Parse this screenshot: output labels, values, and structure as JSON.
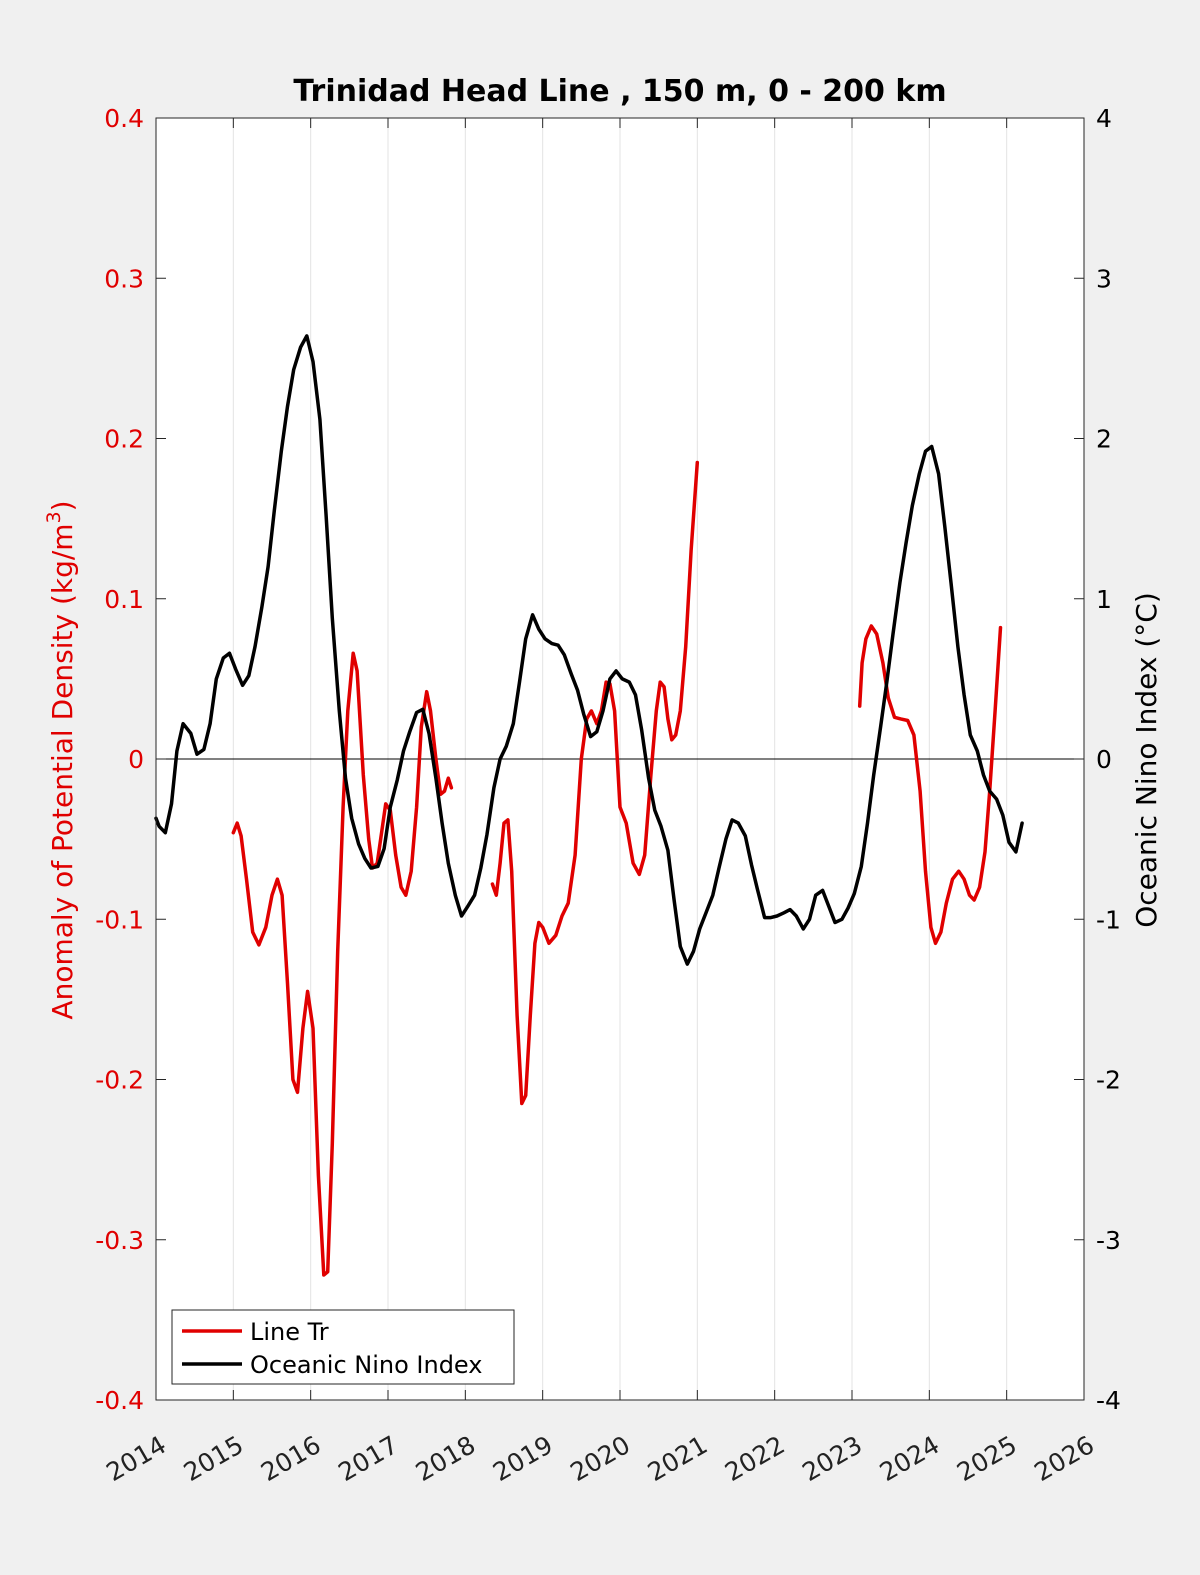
{
  "chart_data": {
    "type": "line",
    "title": "Trinidad Head Line , 150 m, 0 - 200 km",
    "ylabel_left": "Anomaly of Potential Density (kg/m",
    "ylabel_left_sup": "3",
    "ylabel_left_close": ")",
    "ylabel_right": "Oceanic Nino Index (°C)",
    "xlim": [
      2014,
      2026
    ],
    "ylim_left": [
      -0.4,
      0.4
    ],
    "ylim_right": [
      -4,
      4
    ],
    "x_ticks": [
      "2014",
      "2015",
      "2016",
      "2017",
      "2018",
      "2019",
      "2020",
      "2021",
      "2022",
      "2023",
      "2024",
      "2025",
      "2026"
    ],
    "y_left_ticks": [
      "0.4",
      "0.3",
      "0.2",
      "0.1",
      "0",
      "-0.1",
      "-0.2",
      "-0.3",
      "-0.4"
    ],
    "y_right_ticks": [
      "4",
      "3",
      "2",
      "1",
      "0",
      "-1",
      "-2",
      "-3",
      "-4"
    ],
    "grid": "vertical",
    "legend_location": "bottom-left",
    "colors": {
      "density": "#e00000",
      "oni": "#000000",
      "left_axis": "#e00000",
      "background": "#f0f0f0",
      "plot_bg": "#ffffff"
    },
    "series": [
      {
        "name": "Line Tr",
        "axis": "left",
        "segments": [
          [
            [
              2015.0,
              -0.046
            ],
            [
              2015.05,
              -0.04
            ],
            [
              2015.1,
              -0.048
            ],
            [
              2015.17,
              -0.075
            ],
            [
              2015.25,
              -0.108
            ],
            [
              2015.33,
              -0.116
            ],
            [
              2015.42,
              -0.105
            ],
            [
              2015.5,
              -0.085
            ],
            [
              2015.57,
              -0.075
            ],
            [
              2015.63,
              -0.085
            ],
            [
              2015.7,
              -0.14
            ],
            [
              2015.77,
              -0.2
            ],
            [
              2015.83,
              -0.208
            ],
            [
              2015.9,
              -0.168
            ],
            [
              2015.96,
              -0.145
            ],
            [
              2016.03,
              -0.168
            ],
            [
              2016.1,
              -0.26
            ],
            [
              2016.17,
              -0.322
            ],
            [
              2016.22,
              -0.32
            ],
            [
              2016.28,
              -0.24
            ],
            [
              2016.35,
              -0.12
            ],
            [
              2016.42,
              -0.03
            ],
            [
              2016.48,
              0.03
            ],
            [
              2016.55,
              0.066
            ],
            [
              2016.6,
              0.055
            ],
            [
              2016.68,
              -0.01
            ],
            [
              2016.75,
              -0.05
            ],
            [
              2016.8,
              -0.068
            ],
            [
              2016.86,
              -0.065
            ],
            [
              2016.92,
              -0.045
            ],
            [
              2016.97,
              -0.028
            ],
            [
              2017.03,
              -0.032
            ],
            [
              2017.1,
              -0.06
            ],
            [
              2017.17,
              -0.08
            ],
            [
              2017.23,
              -0.085
            ],
            [
              2017.3,
              -0.07
            ],
            [
              2017.37,
              -0.03
            ],
            [
              2017.43,
              0.02
            ],
            [
              2017.5,
              0.042
            ],
            [
              2017.55,
              0.03
            ],
            [
              2017.62,
              0.0
            ],
            [
              2017.68,
              -0.022
            ],
            [
              2017.73,
              -0.02
            ],
            [
              2017.78,
              -0.012
            ],
            [
              2017.82,
              -0.018
            ]
          ],
          [
            [
              2018.35,
              -0.078
            ],
            [
              2018.4,
              -0.085
            ],
            [
              2018.45,
              -0.065
            ],
            [
              2018.5,
              -0.04
            ],
            [
              2018.55,
              -0.038
            ],
            [
              2018.6,
              -0.07
            ],
            [
              2018.67,
              -0.16
            ],
            [
              2018.73,
              -0.215
            ],
            [
              2018.78,
              -0.21
            ],
            [
              2018.84,
              -0.16
            ],
            [
              2018.9,
              -0.115
            ],
            [
              2018.95,
              -0.102
            ],
            [
              2019.0,
              -0.105
            ],
            [
              2019.08,
              -0.115
            ],
            [
              2019.17,
              -0.11
            ],
            [
              2019.25,
              -0.098
            ],
            [
              2019.33,
              -0.09
            ],
            [
              2019.42,
              -0.06
            ],
            [
              2019.5,
              0.0
            ],
            [
              2019.57,
              0.025
            ],
            [
              2019.63,
              0.03
            ],
            [
              2019.7,
              0.022
            ],
            [
              2019.76,
              0.03
            ],
            [
              2019.82,
              0.048
            ],
            [
              2019.87,
              0.047
            ],
            [
              2019.93,
              0.03
            ],
            [
              2020.0,
              -0.03
            ],
            [
              2020.08,
              -0.04
            ],
            [
              2020.17,
              -0.065
            ],
            [
              2020.25,
              -0.072
            ],
            [
              2020.32,
              -0.06
            ],
            [
              2020.4,
              -0.01
            ],
            [
              2020.47,
              0.03
            ],
            [
              2020.52,
              0.048
            ],
            [
              2020.57,
              0.045
            ],
            [
              2020.62,
              0.025
            ],
            [
              2020.67,
              0.012
            ],
            [
              2020.72,
              0.015
            ],
            [
              2020.78,
              0.03
            ],
            [
              2020.85,
              0.07
            ],
            [
              2020.92,
              0.13
            ],
            [
              2021.0,
              0.185
            ]
          ],
          [
            [
              2023.1,
              0.033
            ],
            [
              2023.13,
              0.06
            ],
            [
              2023.18,
              0.075
            ],
            [
              2023.25,
              0.083
            ],
            [
              2023.32,
              0.078
            ],
            [
              2023.4,
              0.06
            ],
            [
              2023.47,
              0.038
            ],
            [
              2023.55,
              0.026
            ],
            [
              2023.63,
              0.025
            ],
            [
              2023.72,
              0.024
            ],
            [
              2023.8,
              0.015
            ],
            [
              2023.88,
              -0.02
            ],
            [
              2023.95,
              -0.07
            ],
            [
              2024.02,
              -0.105
            ],
            [
              2024.08,
              -0.115
            ],
            [
              2024.15,
              -0.108
            ],
            [
              2024.22,
              -0.09
            ],
            [
              2024.3,
              -0.075
            ],
            [
              2024.38,
              -0.07
            ],
            [
              2024.45,
              -0.075
            ],
            [
              2024.52,
              -0.085
            ],
            [
              2024.58,
              -0.088
            ],
            [
              2024.65,
              -0.08
            ],
            [
              2024.72,
              -0.058
            ],
            [
              2024.78,
              -0.02
            ],
            [
              2024.85,
              0.03
            ],
            [
              2024.92,
              0.082
            ]
          ]
        ]
      },
      {
        "name": "Oceanic Nino Index",
        "axis": "right",
        "segments": [
          [
            [
              2014.0,
              -0.37
            ],
            [
              2014.04,
              -0.42
            ],
            [
              2014.12,
              -0.46
            ],
            [
              2014.2,
              -0.28
            ],
            [
              2014.27,
              0.05
            ],
            [
              2014.35,
              0.22
            ],
            [
              2014.45,
              0.16
            ],
            [
              2014.53,
              0.03
            ],
            [
              2014.62,
              0.06
            ],
            [
              2014.7,
              0.22
            ],
            [
              2014.78,
              0.5
            ],
            [
              2014.87,
              0.63
            ],
            [
              2014.95,
              0.66
            ],
            [
              2015.03,
              0.56
            ],
            [
              2015.12,
              0.46
            ],
            [
              2015.2,
              0.52
            ],
            [
              2015.28,
              0.7
            ],
            [
              2015.37,
              0.95
            ],
            [
              2015.45,
              1.2
            ],
            [
              2015.53,
              1.55
            ],
            [
              2015.62,
              1.92
            ],
            [
              2015.7,
              2.2
            ],
            [
              2015.78,
              2.43
            ],
            [
              2015.87,
              2.57
            ],
            [
              2015.95,
              2.64
            ],
            [
              2016.03,
              2.48
            ],
            [
              2016.12,
              2.12
            ],
            [
              2016.2,
              1.52
            ],
            [
              2016.28,
              0.88
            ],
            [
              2016.37,
              0.3
            ],
            [
              2016.45,
              -0.12
            ],
            [
              2016.53,
              -0.37
            ],
            [
              2016.62,
              -0.53
            ],
            [
              2016.7,
              -0.62
            ],
            [
              2016.78,
              -0.68
            ],
            [
              2016.87,
              -0.67
            ],
            [
              2016.95,
              -0.56
            ],
            [
              2017.03,
              -0.3
            ],
            [
              2017.12,
              -0.13
            ],
            [
              2017.2,
              0.05
            ],
            [
              2017.28,
              0.17
            ],
            [
              2017.37,
              0.29
            ],
            [
              2017.45,
              0.31
            ],
            [
              2017.53,
              0.16
            ],
            [
              2017.62,
              -0.12
            ],
            [
              2017.7,
              -0.4
            ],
            [
              2017.78,
              -0.65
            ],
            [
              2017.87,
              -0.85
            ],
            [
              2017.95,
              -0.98
            ],
            [
              2018.03,
              -0.92
            ],
            [
              2018.12,
              -0.85
            ],
            [
              2018.2,
              -0.68
            ],
            [
              2018.28,
              -0.47
            ],
            [
              2018.37,
              -0.18
            ],
            [
              2018.45,
              0.0
            ],
            [
              2018.53,
              0.08
            ],
            [
              2018.62,
              0.22
            ],
            [
              2018.7,
              0.48
            ],
            [
              2018.78,
              0.75
            ],
            [
              2018.87,
              0.9
            ],
            [
              2018.95,
              0.81
            ],
            [
              2019.03,
              0.75
            ],
            [
              2019.12,
              0.72
            ],
            [
              2019.2,
              0.71
            ],
            [
              2019.28,
              0.65
            ],
            [
              2019.37,
              0.53
            ],
            [
              2019.45,
              0.43
            ],
            [
              2019.53,
              0.28
            ],
            [
              2019.62,
              0.14
            ],
            [
              2019.7,
              0.17
            ],
            [
              2019.78,
              0.3
            ],
            [
              2019.87,
              0.5
            ],
            [
              2019.95,
              0.55
            ],
            [
              2020.03,
              0.5
            ],
            [
              2020.12,
              0.48
            ],
            [
              2020.2,
              0.4
            ],
            [
              2020.28,
              0.18
            ],
            [
              2020.37,
              -0.12
            ],
            [
              2020.45,
              -0.32
            ],
            [
              2020.53,
              -0.42
            ],
            [
              2020.62,
              -0.57
            ],
            [
              2020.7,
              -0.88
            ],
            [
              2020.78,
              -1.17
            ],
            [
              2020.87,
              -1.28
            ],
            [
              2020.95,
              -1.2
            ],
            [
              2021.03,
              -1.06
            ],
            [
              2021.12,
              -0.95
            ],
            [
              2021.2,
              -0.85
            ],
            [
              2021.28,
              -0.68
            ],
            [
              2021.37,
              -0.5
            ],
            [
              2021.45,
              -0.38
            ],
            [
              2021.53,
              -0.4
            ],
            [
              2021.62,
              -0.48
            ],
            [
              2021.7,
              -0.66
            ],
            [
              2021.78,
              -0.82
            ],
            [
              2021.87,
              -0.99
            ],
            [
              2021.95,
              -0.99
            ],
            [
              2022.03,
              -0.98
            ],
            [
              2022.12,
              -0.96
            ],
            [
              2022.2,
              -0.94
            ],
            [
              2022.28,
              -0.98
            ],
            [
              2022.37,
              -1.06
            ],
            [
              2022.45,
              -1.0
            ],
            [
              2022.53,
              -0.85
            ],
            [
              2022.62,
              -0.82
            ],
            [
              2022.7,
              -0.92
            ],
            [
              2022.78,
              -1.02
            ],
            [
              2022.87,
              -1.0
            ],
            [
              2022.95,
              -0.93
            ],
            [
              2023.03,
              -0.84
            ],
            [
              2023.12,
              -0.67
            ],
            [
              2023.2,
              -0.4
            ],
            [
              2023.28,
              -0.1
            ],
            [
              2023.37,
              0.2
            ],
            [
              2023.45,
              0.48
            ],
            [
              2023.53,
              0.78
            ],
            [
              2023.62,
              1.1
            ],
            [
              2023.7,
              1.35
            ],
            [
              2023.78,
              1.58
            ],
            [
              2023.87,
              1.78
            ],
            [
              2023.95,
              1.92
            ],
            [
              2024.03,
              1.95
            ],
            [
              2024.12,
              1.78
            ],
            [
              2024.2,
              1.45
            ],
            [
              2024.28,
              1.1
            ],
            [
              2024.37,
              0.7
            ],
            [
              2024.45,
              0.4
            ],
            [
              2024.53,
              0.15
            ],
            [
              2024.62,
              0.05
            ],
            [
              2024.7,
              -0.1
            ],
            [
              2024.78,
              -0.2
            ],
            [
              2024.87,
              -0.25
            ],
            [
              2024.95,
              -0.35
            ],
            [
              2025.03,
              -0.52
            ],
            [
              2025.12,
              -0.58
            ],
            [
              2025.2,
              -0.4
            ]
          ]
        ]
      }
    ]
  }
}
